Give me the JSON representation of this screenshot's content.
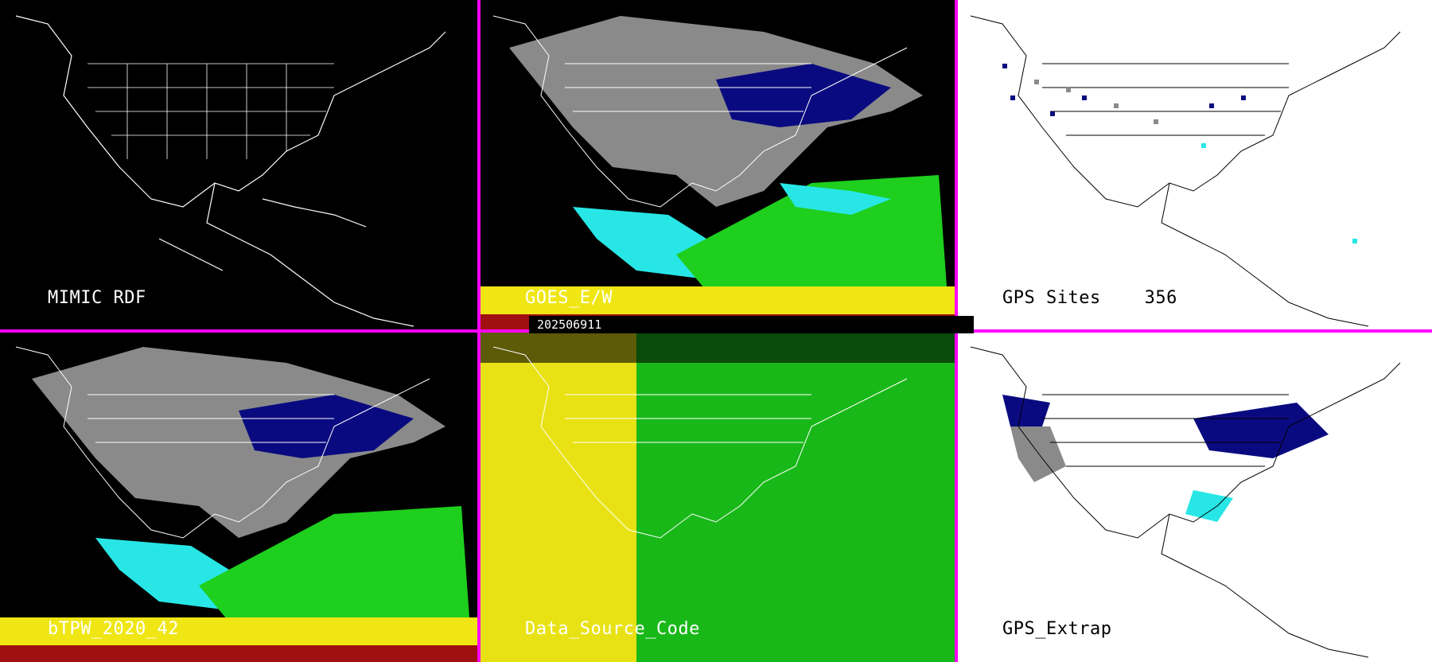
{
  "panels": [
    {
      "label": "MIMIC RDF",
      "theme": "dark"
    },
    {
      "label": "GOES_E/W",
      "theme": "dark"
    },
    {
      "label": "GPS Sites    356",
      "theme": "light"
    },
    {
      "label": "bTPW_2020_42",
      "theme": "dark"
    },
    {
      "label": "Data_Source_Code",
      "theme": "dark"
    },
    {
      "label": "GPS_Extrap",
      "theme": "light"
    }
  ],
  "timestamp": "202506911",
  "colors": {
    "divider": "#ff00ff",
    "dry_navy": "#0a0a80",
    "blue": "#1e3cff",
    "cyan": "#28e6e6",
    "green": "#1ecf1e",
    "yellow": "#f0e614",
    "red": "#a01010",
    "gray": "#8a8a8a",
    "source_yellow": "#e8e214",
    "source_green": "#19b819"
  }
}
